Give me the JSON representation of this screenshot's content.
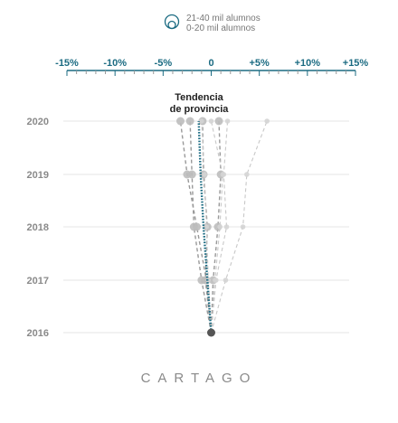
{
  "chart_data": {
    "type": "line",
    "region": "CARTAGO",
    "legend": [
      {
        "label": "21-40 mil alumnos",
        "icon": "bubble-size-icon"
      },
      {
        "label": "0-20 mil alumnos"
      }
    ],
    "x_ticks": [
      {
        "value": -15,
        "label": "-15%"
      },
      {
        "value": -10,
        "label": "-10%"
      },
      {
        "value": -5,
        "label": "-5%"
      },
      {
        "value": 0,
        "label": "0"
      },
      {
        "value": 5,
        "label": "+5%"
      },
      {
        "value": 10,
        "label": "+10%"
      },
      {
        "value": 15,
        "label": "+15%"
      }
    ],
    "xlim": [
      -15,
      15
    ],
    "years": [
      "2020",
      "2019",
      "2018",
      "2017",
      "2016"
    ],
    "trend_label_line1": "Tendencia",
    "trend_label_line2": "de provincia",
    "colors": {
      "trend": "#1b6b82",
      "series": "#bbbbbb",
      "axis": "#1b6b82",
      "grid": "#e6e6e6",
      "base": "#555555"
    },
    "series": [
      {
        "values": [
          0,
          -0.5,
          -1.5,
          -2.5,
          -3.2
        ],
        "size": "large"
      },
      {
        "values": [
          0,
          -1.0,
          -1.8,
          -2.0,
          -2.2
        ],
        "size": "large"
      },
      {
        "values": [
          0,
          -0.6,
          -0.4,
          -0.8,
          -0.9
        ],
        "size": "large"
      },
      {
        "values": [
          0,
          0.2,
          0.7,
          1.0,
          0.8
        ],
        "size": "large"
      },
      {
        "values": [
          0,
          -0.3,
          -0.5,
          -0.7,
          -1.0
        ],
        "size": "small"
      },
      {
        "values": [
          0,
          0.5,
          1.6,
          1.3,
          1.7
        ],
        "size": "small"
      },
      {
        "values": [
          0,
          0.4,
          0.9,
          1.2,
          0.0
        ],
        "size": "small"
      },
      {
        "values": [
          0,
          1.5,
          3.3,
          3.7,
          5.8
        ],
        "size": "small"
      }
    ],
    "trend": {
      "values": [
        0,
        -0.4,
        -0.8,
        -1.1,
        -1.3
      ]
    }
  }
}
